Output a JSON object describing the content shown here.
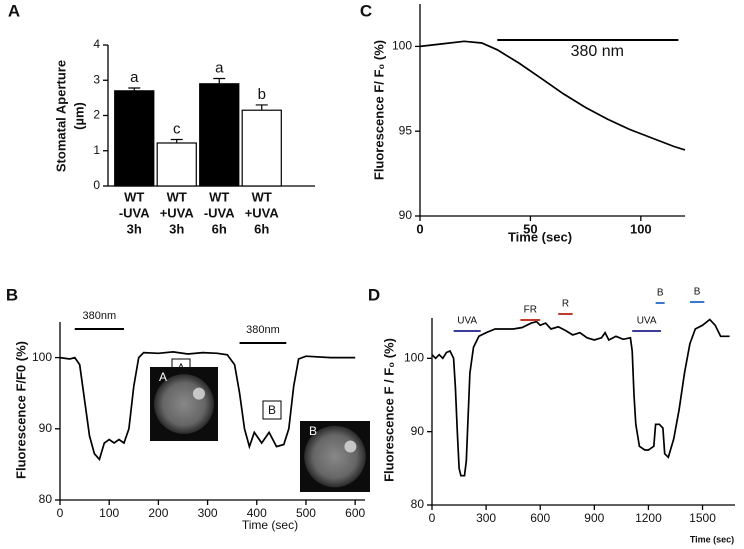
{
  "chart_data": [
    {
      "type": "bar",
      "panel": "A",
      "ylabel": [
        "Stomatal Aperture",
        "(µm)"
      ],
      "categories": [
        [
          "WT",
          "-UVA",
          "3h"
        ],
        [
          "WT",
          "+UVA",
          "3h"
        ],
        [
          "WT",
          "-UVA",
          "6h"
        ],
        [
          "WT",
          "+UVA",
          "6h"
        ]
      ],
      "values": [
        2.7,
        1.22,
        2.9,
        2.15
      ],
      "errors": [
        0.08,
        0.1,
        0.15,
        0.15
      ],
      "colors": [
        "#000000",
        "#ffffff",
        "#000000",
        "#ffffff"
      ],
      "annotations": [
        "a",
        "c",
        "a",
        "b"
      ],
      "ylim": [
        0,
        4
      ],
      "yticks": [
        0,
        1,
        2,
        3,
        4
      ]
    },
    {
      "type": "line",
      "panel": "C",
      "xlabel": "Time (sec)",
      "ylabel": "Fluorescence F/ F₀ (%)",
      "x": [
        0,
        10,
        20,
        28,
        35,
        45,
        55,
        65,
        75,
        85,
        95,
        105,
        115,
        120
      ],
      "values": [
        100,
        100.15,
        100.3,
        100.2,
        99.8,
        99,
        98.1,
        97.2,
        96.4,
        95.7,
        95.1,
        94.6,
        94.1,
        93.9
      ],
      "spans": [
        {
          "label": "380 nm",
          "x": [
            35,
            117
          ],
          "color": "#000000"
        }
      ],
      "xlim": [
        0,
        120
      ],
      "xticks": [
        0,
        50,
        100
      ],
      "ylim": [
        90,
        102.5
      ],
      "yticks": [
        90,
        95,
        100
      ]
    },
    {
      "type": "line",
      "panel": "B",
      "xlabel": "Time (sec)",
      "ylabel": "Fluorescence F/F0 (%)",
      "x": [
        0,
        20,
        30,
        40,
        50,
        60,
        70,
        80,
        90,
        100,
        110,
        120,
        130,
        140,
        150,
        160,
        170,
        200,
        230,
        260,
        290,
        320,
        340,
        355,
        365,
        375,
        385,
        395,
        410,
        425,
        440,
        455,
        465,
        475,
        485,
        500,
        550,
        600
      ],
      "values": [
        100,
        99.8,
        100,
        99,
        94,
        89,
        86.5,
        85.7,
        88,
        88.5,
        88,
        88.5,
        88,
        90,
        96,
        100,
        100.7,
        100.6,
        100.8,
        100.5,
        100.7,
        100.6,
        100.4,
        99,
        95,
        90,
        87.5,
        89.5,
        88,
        89.5,
        87.5,
        87.8,
        90,
        96,
        99.8,
        100.2,
        100,
        100
      ],
      "spans": [
        {
          "label": "380nm",
          "x": [
            30,
            130
          ],
          "color": "#000000"
        },
        {
          "label": "380nm",
          "x": [
            365,
            460
          ],
          "color": "#000000"
        }
      ],
      "boxed_labels": [
        "A",
        "B"
      ],
      "inset_labels": [
        "A",
        "B"
      ],
      "xlim": [
        0,
        620
      ],
      "xticks": [
        0,
        100,
        200,
        300,
        400,
        500,
        600
      ],
      "ylim": [
        80,
        105
      ],
      "yticks": [
        80,
        90,
        100
      ]
    },
    {
      "type": "line",
      "panel": "D",
      "xlabel": "Time (sec)",
      "ylabel": "Fluorescence F / F₀ (%)",
      "x": [
        0,
        20,
        40,
        60,
        80,
        100,
        120,
        130,
        140,
        150,
        160,
        180,
        190,
        200,
        210,
        230,
        260,
        300,
        350,
        400,
        450,
        500,
        550,
        580,
        600,
        630,
        660,
        700,
        740,
        780,
        820,
        860,
        900,
        940,
        960,
        980,
        1020,
        1060,
        1100,
        1110,
        1120,
        1130,
        1150,
        1180,
        1200,
        1230,
        1240,
        1260,
        1280,
        1290,
        1310,
        1340,
        1370,
        1400,
        1430,
        1460,
        1500,
        1540,
        1570,
        1600,
        1650
      ],
      "values": [
        100.5,
        100,
        100.5,
        100,
        100.8,
        101,
        100,
        96,
        90,
        85,
        84,
        84,
        86,
        92,
        98,
        101.5,
        103,
        103.5,
        104,
        104,
        104,
        104.2,
        104.8,
        105,
        104.5,
        104.8,
        104,
        104.3,
        103.8,
        103.2,
        103.5,
        102.8,
        102.5,
        102.8,
        103.5,
        102.5,
        103,
        102.6,
        102.8,
        101,
        95,
        91,
        88,
        87.5,
        87.5,
        88,
        91,
        91,
        90.5,
        87,
        86.5,
        89,
        93,
        98,
        102,
        104,
        104.5,
        105.3,
        104.5,
        103,
        103
      ],
      "spans": [
        {
          "label": "UVA",
          "x": [
            120,
            270
          ],
          "color": "#3b3b98"
        },
        {
          "label": "FR",
          "x": [
            490,
            600
          ],
          "color": "#c0392b"
        },
        {
          "label": "R",
          "x": [
            700,
            780
          ],
          "color": "#c0392b"
        },
        {
          "label": "UVA",
          "x": [
            1110,
            1270
          ],
          "color": "#3b3b98"
        },
        {
          "label": "B",
          "x": [
            1240,
            1290
          ],
          "color": "#3a78d0"
        },
        {
          "label": "B",
          "x": [
            1430,
            1510
          ],
          "color": "#3a78d0"
        }
      ],
      "xlim": [
        0,
        1680
      ],
      "xticks": [
        0,
        300,
        600,
        900,
        1200,
        1500
      ],
      "ylim": [
        80,
        105.5
      ],
      "yticks": [
        80,
        90,
        100
      ]
    }
  ]
}
